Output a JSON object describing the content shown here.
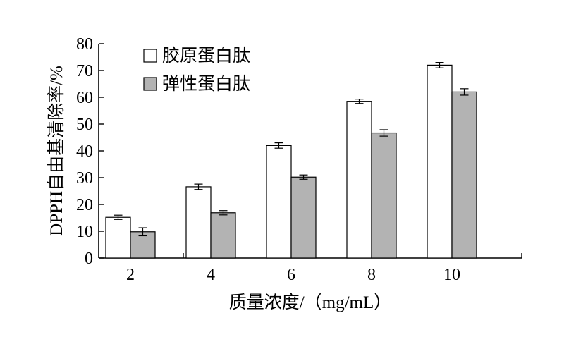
{
  "chart_data": {
    "type": "bar",
    "categories": [
      "2",
      "4",
      "6",
      "8",
      "10"
    ],
    "series": [
      {
        "name": "胶原蛋白肽",
        "values": [
          15.2,
          26.6,
          42.0,
          58.5,
          72.0
        ],
        "errors": [
          0.8,
          1.0,
          1.0,
          0.8,
          1.0
        ],
        "fill": "#ffffff"
      },
      {
        "name": "弹性蛋白肽",
        "values": [
          9.8,
          16.9,
          30.2,
          46.7,
          62.0
        ],
        "errors": [
          1.5,
          0.8,
          0.8,
          1.2,
          1.2
        ],
        "fill": "#b3b3b3"
      }
    ],
    "xlabel": "质量浓度/（mg/mL）",
    "ylabel": "DPPH自由基清除率/%",
    "ylim": [
      0,
      80
    ],
    "yticks": [
      0,
      10,
      20,
      30,
      40,
      50,
      60,
      70,
      80
    ],
    "grid": false,
    "legend_position": "top-left",
    "bar_border_color": "#000000"
  }
}
